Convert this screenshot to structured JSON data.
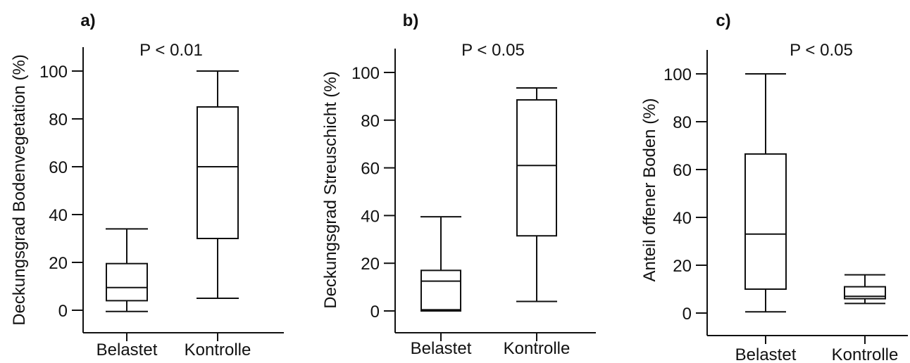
{
  "chart_data": [
    {
      "type": "box",
      "panel": "a)",
      "annotation": "P < 0.01",
      "ylabel": "Deckungsgrad Bodenvegetation (%)",
      "yticks": [
        0,
        20,
        40,
        60,
        80,
        100
      ],
      "ylim": [
        -9,
        110
      ],
      "categories": [
        "Belastet",
        "Kontrolle"
      ],
      "boxes": [
        {
          "min": -0.5,
          "q1": 4,
          "median": 9.5,
          "q3": 19.5,
          "max": 34
        },
        {
          "min": 5,
          "q1": 30,
          "median": 60,
          "q3": 85,
          "max": 100
        }
      ]
    },
    {
      "type": "box",
      "panel": "b)",
      "annotation": "P < 0.05",
      "ylabel": "Deckungsgrad Streuschicht (%)",
      "yticks": [
        0,
        20,
        40,
        60,
        80,
        100
      ],
      "ylim": [
        -9,
        110
      ],
      "categories": [
        "Belastet",
        "Kontrolle"
      ],
      "boxes": [
        {
          "min": 0,
          "q1": 0.5,
          "median": 12.5,
          "q3": 17,
          "max": 39.5
        },
        {
          "min": 4,
          "q1": 31.5,
          "median": 61,
          "q3": 88.5,
          "max": 93.5
        }
      ]
    },
    {
      "type": "box",
      "panel": "c)",
      "annotation": "P < 0.05",
      "ylabel": "Anteil offener Boden (%)",
      "yticks": [
        0,
        20,
        40,
        60,
        80,
        100
      ],
      "ylim": [
        -9,
        110
      ],
      "categories": [
        "Belastet",
        "Kontrolle"
      ],
      "boxes": [
        {
          "min": 0.5,
          "q1": 10,
          "median": 33,
          "q3": 66.5,
          "max": 100
        },
        {
          "min": 4,
          "q1": 6,
          "median": 7,
          "q3": 11,
          "max": 16
        }
      ]
    }
  ]
}
